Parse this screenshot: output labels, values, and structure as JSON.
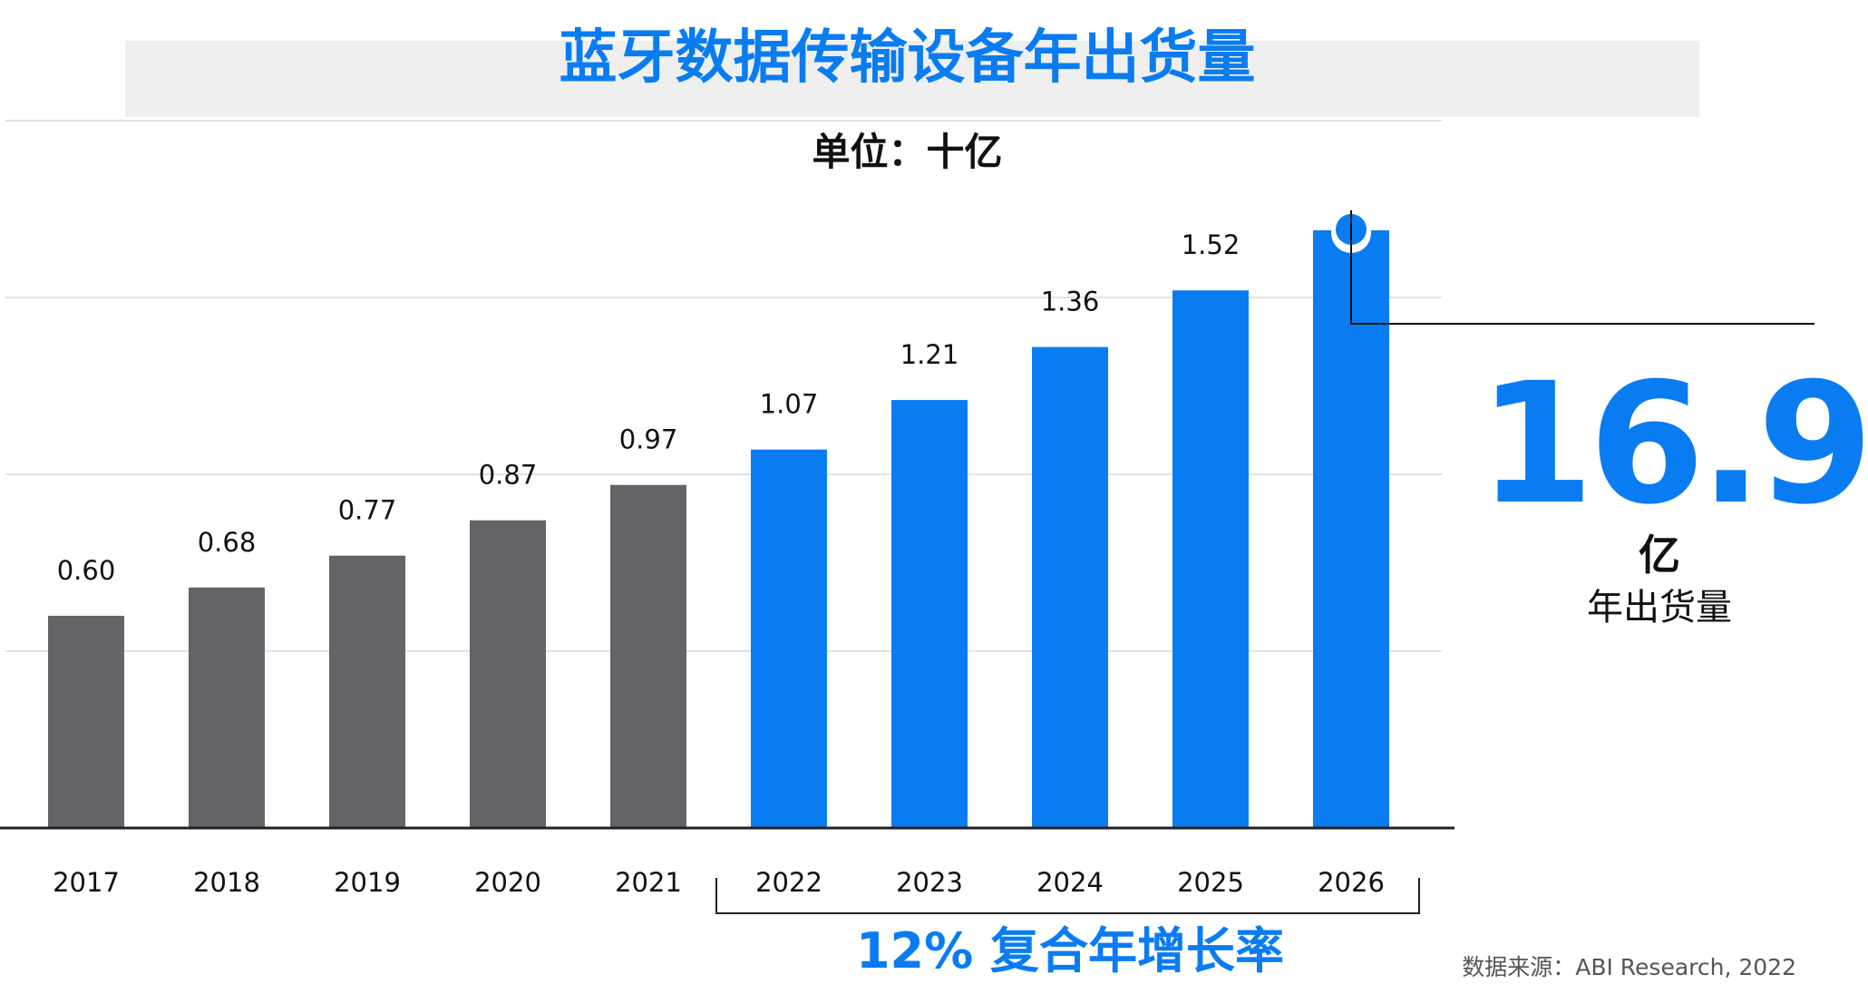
{
  "title": "蓝牙数据传输设备年出货量",
  "unit_text": "单位：十亿",
  "highlight": {
    "value": "16.9",
    "unit": "亿",
    "label": "年出货量"
  },
  "cagr_text": "12% 复合年增长率",
  "source_text": "数据来源：ABI Research, 2022",
  "colors": {
    "historical": "#636468",
    "forecast": "#0a7cf2",
    "title": "#0a7cf2",
    "grid": "#e2e2e2",
    "axis": "#222222"
  },
  "chart_data": {
    "type": "bar",
    "title": "蓝牙数据传输设备年出货量",
    "subtitle": "单位：十亿",
    "categories": [
      "2017",
      "2018",
      "2019",
      "2020",
      "2021",
      "2022",
      "2023",
      "2024",
      "2025",
      "2026"
    ],
    "values": [
      0.6,
      0.68,
      0.77,
      0.87,
      0.97,
      1.07,
      1.21,
      1.36,
      1.52,
      1.69
    ],
    "value_labels": [
      "0.60",
      "0.68",
      "0.77",
      "0.87",
      "0.97",
      "1.07",
      "1.21",
      "1.36",
      "1.52",
      ""
    ],
    "series_kind": [
      "historical",
      "historical",
      "historical",
      "historical",
      "historical",
      "forecast",
      "forecast",
      "forecast",
      "forecast",
      "forecast"
    ],
    "ylim": [
      0,
      2.0
    ],
    "grid": true,
    "xlabel": "",
    "ylabel": ""
  }
}
